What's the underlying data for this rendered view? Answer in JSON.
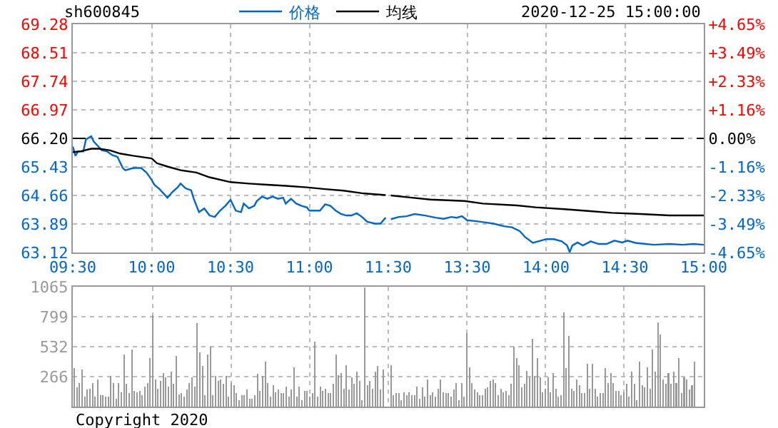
{
  "chart_data": [
    {
      "type": "line",
      "title": "sh600845",
      "xlim": [
        "2020-12-25T09:30",
        "2020-12-25T11:30"
      ],
      "xticks": [
        {
          "value": "2020-12-25T09:30",
          "label": "09:30"
        },
        {
          "value": "2020-12-25T10:00",
          "label": "10:00"
        },
        {
          "value": "2020-12-25T10:30",
          "label": "10:30"
        },
        {
          "value": "2020-12-25T11:00",
          "label": "11:00"
        },
        {
          "value": "2020-12-25T11:30",
          "label": "11:30"
        }
      ],
      "ylim": [
        63.12,
        69.28
      ],
      "yticks": [
        63.12,
        63.89,
        64.66,
        65.43,
        {
          "value": 66.2,
          "label": "66.20"
        },
        66.97,
        67.74,
        68.51,
        69.28
      ],
      "grid": true,
      "legend": "top right",
      "ref_lines": [
        {
          "axis": "y",
          "value": 66.2,
          "color": "#000000",
          "line_style": "dashed"
        }
      ],
      "series": [
        {
          "name": "价格",
          "color": "#0066cc",
          "x": [
            "2020-12-25T09:30",
            "2020-12-25T09:31",
            "2020-12-25T09:32",
            "2020-12-25T09:34",
            "2020-12-25T09:35",
            "2020-12-25T09:37",
            "2020-12-25T09:38",
            "2020-12-25T09:40",
            "2020-12-25T09:41",
            "2020-12-25T09:43",
            "2020-12-25T09:45",
            "2020-12-25T09:47",
            "2020-12-25T09:49",
            "2020-12-25T09:50",
            "2020-12-25T09:53",
            "2020-12-25T09:56",
            "2020-12-25T09:58",
            "2020-12-25T10:00",
            "2020-12-25T10:01",
            "2020-12-25T10:03",
            "2020-12-25T10:06",
            "2020-12-25T10:08",
            "2020-12-25T10:10",
            "2020-12-25T10:11",
            "2020-12-25T10:13",
            "2020-12-25T10:15",
            "2020-12-25T10:16",
            "2020-12-25T10:18",
            "2020-12-25T10:20",
            "2020-12-25T10:22",
            "2020-12-25T10:24",
            "2020-12-25T10:26",
            "2020-12-25T10:28",
            "2020-12-25T10:30",
            "2020-12-25T10:32",
            "2020-12-25T10:34",
            "2020-12-25T10:35",
            "2020-12-25T10:37",
            "2020-12-25T10:39",
            "2020-12-25T10:40",
            "2020-12-25T10:42",
            "2020-12-25T10:44",
            "2020-12-25T10:46",
            "2020-12-25T10:48",
            "2020-12-25T10:50",
            "2020-12-25T10:51",
            "2020-12-25T10:53",
            "2020-12-25T10:55",
            "2020-12-25T10:57",
            "2020-12-25T10:59",
            "2020-12-25T11:00",
            "2020-12-25T11:02",
            "2020-12-25T11:04",
            "2020-12-25T11:06",
            "2020-12-25T11:08",
            "2020-12-25T11:10",
            "2020-12-25T11:12",
            "2020-12-25T11:14",
            "2020-12-25T11:16",
            "2020-12-25T11:18",
            "2020-12-25T11:20",
            "2020-12-25T11:22",
            "2020-12-25T11:25",
            "2020-12-25T11:27",
            "2020-12-25T11:29"
          ],
          "values": [
            65.98,
            65.73,
            65.85,
            65.85,
            66.17,
            66.26,
            66.11,
            65.96,
            65.88,
            65.85,
            65.75,
            65.7,
            65.4,
            65.34,
            65.4,
            65.4,
            65.28,
            65.08,
            64.95,
            64.83,
            64.6,
            64.76,
            64.89,
            64.98,
            64.85,
            64.8,
            64.57,
            64.21,
            64.31,
            64.12,
            64.08,
            64.25,
            64.38,
            64.54,
            64.25,
            64.21,
            64.44,
            64.31,
            64.38,
            64.51,
            64.63,
            64.57,
            64.63,
            64.57,
            64.6,
            64.44,
            64.57,
            64.44,
            64.38,
            64.34,
            64.25,
            64.25,
            64.25,
            64.42,
            64.38,
            64.25,
            64.16,
            64.12,
            64.12,
            64.18,
            64.08,
            63.95,
            63.9,
            63.9,
            64.06
          ]
        },
        {
          "name": "均线",
          "color": "#000000",
          "x": [
            "2020-12-25T09:30",
            "2020-12-25T09:33",
            "2020-12-25T09:37",
            "2020-12-25T09:40",
            "2020-12-25T09:44",
            "2020-12-25T09:48",
            "2020-12-25T09:53",
            "2020-12-25T10:00",
            "2020-12-25T10:02",
            "2020-12-25T10:06",
            "2020-12-25T10:11",
            "2020-12-25T10:17",
            "2020-12-25T10:22",
            "2020-12-25T10:30",
            "2020-12-25T10:37",
            "2020-12-25T10:44",
            "2020-12-25T10:51",
            "2020-12-25T10:59",
            "2020-12-25T11:06",
            "2020-12-25T11:13",
            "2020-12-25T11:20",
            "2020-12-25T11:29"
          ],
          "values": [
            65.83,
            65.85,
            65.92,
            65.92,
            65.88,
            65.79,
            65.73,
            65.66,
            65.53,
            65.44,
            65.34,
            65.28,
            65.15,
            65.02,
            64.98,
            64.95,
            64.92,
            64.88,
            64.83,
            64.79,
            64.72,
            64.67
          ]
        }
      ]
    },
    {
      "type": "line",
      "annotations": [
        "2020-12-25 15:00:00"
      ],
      "tick_labels": "x",
      "xlim": [
        "2020-12-25T13:00",
        "2020-12-25T15:00"
      ],
      "xticks": [
        {
          "value": "2020-12-25T13:30",
          "label": "13:30"
        },
        {
          "value": "2020-12-25T14:00",
          "label": "14:00"
        },
        {
          "value": "2020-12-25T14:30",
          "label": "14:30"
        },
        {
          "value": "2020-12-25T15:00",
          "label": "15:00"
        }
      ],
      "ylim": [
        63.12,
        69.28
      ],
      "yticks": [
        63.12,
        63.89,
        64.66,
        65.43,
        66.2,
        66.97,
        67.74,
        68.51,
        69.28
      ],
      "y2lim": [
        -4.65,
        4.65
      ],
      "y2ticks": [
        {
          "value": -4.65,
          "label": "-4.65%"
        },
        {
          "value": -3.49,
          "label": "-3.49%"
        },
        {
          "value": -2.33,
          "label": "-2.33%"
        },
        {
          "value": -1.16,
          "label": "-1.16%"
        },
        {
          "value": 0,
          "label": "0.00%"
        },
        {
          "value": 1.16,
          "label": "+1.16%"
        },
        {
          "value": 2.33,
          "label": "+2.33%"
        },
        {
          "value": 3.49,
          "label": "+3.49%"
        },
        {
          "value": 4.65,
          "label": "+4.65%"
        }
      ],
      "grid": true,
      "ref_lines": [
        {
          "axis": "y",
          "value": 66.2,
          "color": "#000000",
          "line_style": "dashed"
        }
      ],
      "series": [
        {
          "color": "#0066cc",
          "x": [
            "2020-12-25T13:01",
            "2020-12-25T13:04",
            "2020-12-25T13:07",
            "2020-12-25T13:10",
            "2020-12-25T13:14",
            "2020-12-25T13:18",
            "2020-12-25T13:21",
            "2020-12-25T13:24",
            "2020-12-25T13:26",
            "2020-12-25T13:28",
            "2020-12-25T13:30",
            "2020-12-25T13:33",
            "2020-12-25T13:37",
            "2020-12-25T13:40",
            "2020-12-25T13:44",
            "2020-12-25T13:47",
            "2020-12-25T13:50",
            "2020-12-25T13:52",
            "2020-12-25T13:55",
            "2020-12-25T13:58",
            "2020-12-25T14:00",
            "2020-12-25T14:03",
            "2020-12-25T14:06",
            "2020-12-25T14:08",
            "2020-12-25T14:09",
            "2020-12-25T14:10",
            "2020-12-25T14:12",
            "2020-12-25T14:14",
            "2020-12-25T14:17",
            "2020-12-25T14:20",
            "2020-12-25T14:23",
            "2020-12-25T14:26",
            "2020-12-25T14:29",
            "2020-12-25T14:31",
            "2020-12-25T14:34",
            "2020-12-25T14:38",
            "2020-12-25T14:41",
            "2020-12-25T14:47",
            "2020-12-25T14:52",
            "2020-12-25T14:56",
            "2020-12-25T15:00"
          ],
          "values": [
            64.02,
            64.08,
            64.1,
            64.16,
            64.12,
            64.06,
            64.03,
            64.08,
            64.06,
            64.1,
            63.99,
            63.97,
            63.93,
            63.9,
            63.83,
            63.8,
            63.7,
            63.54,
            63.38,
            63.44,
            63.48,
            63.48,
            63.42,
            63.31,
            63.13,
            63.31,
            63.39,
            63.31,
            63.42,
            63.35,
            63.35,
            63.44,
            63.39,
            63.44,
            63.38,
            63.35,
            63.33,
            63.35,
            63.33,
            63.35,
            63.33
          ]
        },
        {
          "color": "#000000",
          "x": [
            "2020-12-25T13:01",
            "2020-12-25T13:09",
            "2020-12-25T13:16",
            "2020-12-25T13:29",
            "2020-12-25T13:36",
            "2020-12-25T13:49",
            "2020-12-25T13:56",
            "2020-12-25T14:07",
            "2020-12-25T14:16",
            "2020-12-25T14:25",
            "2020-12-25T14:36",
            "2020-12-25T14:47",
            "2020-12-25T15:00"
          ],
          "values": [
            64.66,
            64.6,
            64.55,
            64.51,
            64.44,
            64.39,
            64.34,
            64.29,
            64.24,
            64.19,
            64.16,
            64.12,
            64.12
          ]
        }
      ]
    },
    {
      "type": "bar",
      "color": "#999999",
      "annotations": [
        "Copyright 2020"
      ],
      "tick_labels": "y",
      "ylim": [
        0,
        1065
      ],
      "yticks": [
        266,
        532,
        799,
        1065
      ],
      "grid": true,
      "categories": [
        null,
        null,
        null,
        null,
        null,
        null,
        null,
        null,
        null,
        null,
        null,
        null,
        null,
        null,
        null,
        null,
        null,
        null,
        null,
        null,
        null,
        null,
        null,
        null,
        null,
        null,
        null,
        null,
        null,
        null,
        null,
        null,
        null,
        null,
        null,
        null,
        null,
        null,
        null,
        null,
        null,
        null,
        null,
        null,
        null,
        null,
        null,
        null,
        null,
        null,
        null,
        null,
        null,
        null,
        null,
        null,
        null,
        null,
        null,
        null,
        null,
        null,
        null,
        null,
        null,
        null,
        null,
        null,
        null,
        null,
        null,
        null,
        null,
        null,
        null,
        null,
        null,
        null,
        null,
        null,
        null,
        null,
        null,
        null,
        null,
        null,
        null,
        null,
        null,
        null,
        null,
        null,
        null,
        null,
        null,
        null,
        null,
        null,
        null,
        null,
        null,
        null,
        null,
        null,
        null,
        null,
        null,
        null,
        null,
        null,
        null,
        null,
        null,
        null,
        null,
        null,
        null,
        null,
        null,
        null,
        null,
        null,
        null,
        null,
        null,
        null,
        null,
        null,
        null,
        null,
        null,
        null,
        null,
        null,
        null,
        null,
        null,
        null,
        null,
        null,
        null,
        null,
        null,
        null,
        null,
        null,
        null,
        null,
        null,
        null,
        null,
        null,
        null,
        null,
        null,
        null,
        null,
        null,
        null,
        null,
        null,
        null,
        null,
        null,
        null,
        null,
        null,
        null,
        null,
        null,
        null,
        null,
        null,
        null,
        null,
        null,
        null,
        null,
        null,
        null,
        null,
        null,
        null,
        null,
        null,
        null,
        null,
        null,
        null,
        null,
        null,
        null,
        null,
        null,
        null,
        null,
        null,
        null,
        null,
        null,
        null,
        null,
        null,
        null,
        null,
        null,
        null,
        null,
        null,
        null,
        null,
        null,
        null,
        null,
        null,
        null,
        null,
        null,
        null,
        null,
        null,
        null,
        null,
        null,
        null,
        null,
        null,
        null,
        null,
        null,
        null,
        null,
        null,
        null,
        null,
        null,
        null,
        null,
        null,
        null,
        null
      ],
      "values": [
        340,
        170,
        210,
        330,
        90,
        150,
        160,
        210,
        90,
        240,
        100,
        100,
        90,
        90,
        270,
        210,
        70,
        210,
        130,
        460,
        200,
        120,
        510,
        140,
        130,
        140,
        100,
        180,
        210,
        430,
        810,
        240,
        160,
        230,
        300,
        260,
        180,
        310,
        200,
        450,
        110,
        120,
        90,
        150,
        210,
        260,
        180,
        740,
        480,
        360,
        100,
        460,
        530,
        100,
        270,
        230,
        240,
        200,
        270,
        90,
        210,
        190,
        120,
        60,
        100,
        100,
        150,
        70,
        70,
        100,
        290,
        140,
        270,
        400,
        210,
        90,
        190,
        130,
        150,
        120,
        120,
        180,
        90,
        150,
        350,
        90,
        180,
        60,
        140,
        140,
        90,
        120,
        580,
        90,
        180,
        140,
        160,
        120,
        120,
        200,
        460,
        280,
        300,
        160,
        370,
        150,
        260,
        200,
        310,
        230,
        60,
        1060,
        190,
        230,
        160,
        310,
        360,
        150,
        330,
        null,
        null,
        370,
        100,
        120,
        120,
        60,
        130,
        100,
        130,
        100,
        100,
        180,
        70,
        170,
        90,
        240,
        100,
        130,
        90,
        160,
        240,
        130,
        120,
        120,
        90,
        150,
        210,
        60,
        210,
        90,
        650,
        350,
        210,
        150,
        130,
        100,
        100,
        160,
        170,
        230,
        240,
        210,
        100,
        160,
        130,
        140,
        100,
        200,
        530,
        430,
        370,
        170,
        200,
        320,
        260,
        600,
        270,
        430,
        260,
        130,
        160,
        260,
        130,
        300,
        160,
        90,
        100,
        840,
        340,
        630,
        160,
        140,
        240,
        190,
        120,
        120,
        380,
        160,
        380,
        160,
        90,
        120,
        120,
        340,
        210,
        300,
        210,
        140,
        140,
        100,
        130,
        200,
        90,
        310,
        200,
        60,
        400,
        190,
        170,
        350,
        160,
        510,
        310,
        750,
        640,
        240,
        200,
        300,
        200,
        310,
        210,
        430,
        120,
        260,
        240,
        150,
        190,
        400,
        null,
        null,
        null
      ]
    }
  ]
}
